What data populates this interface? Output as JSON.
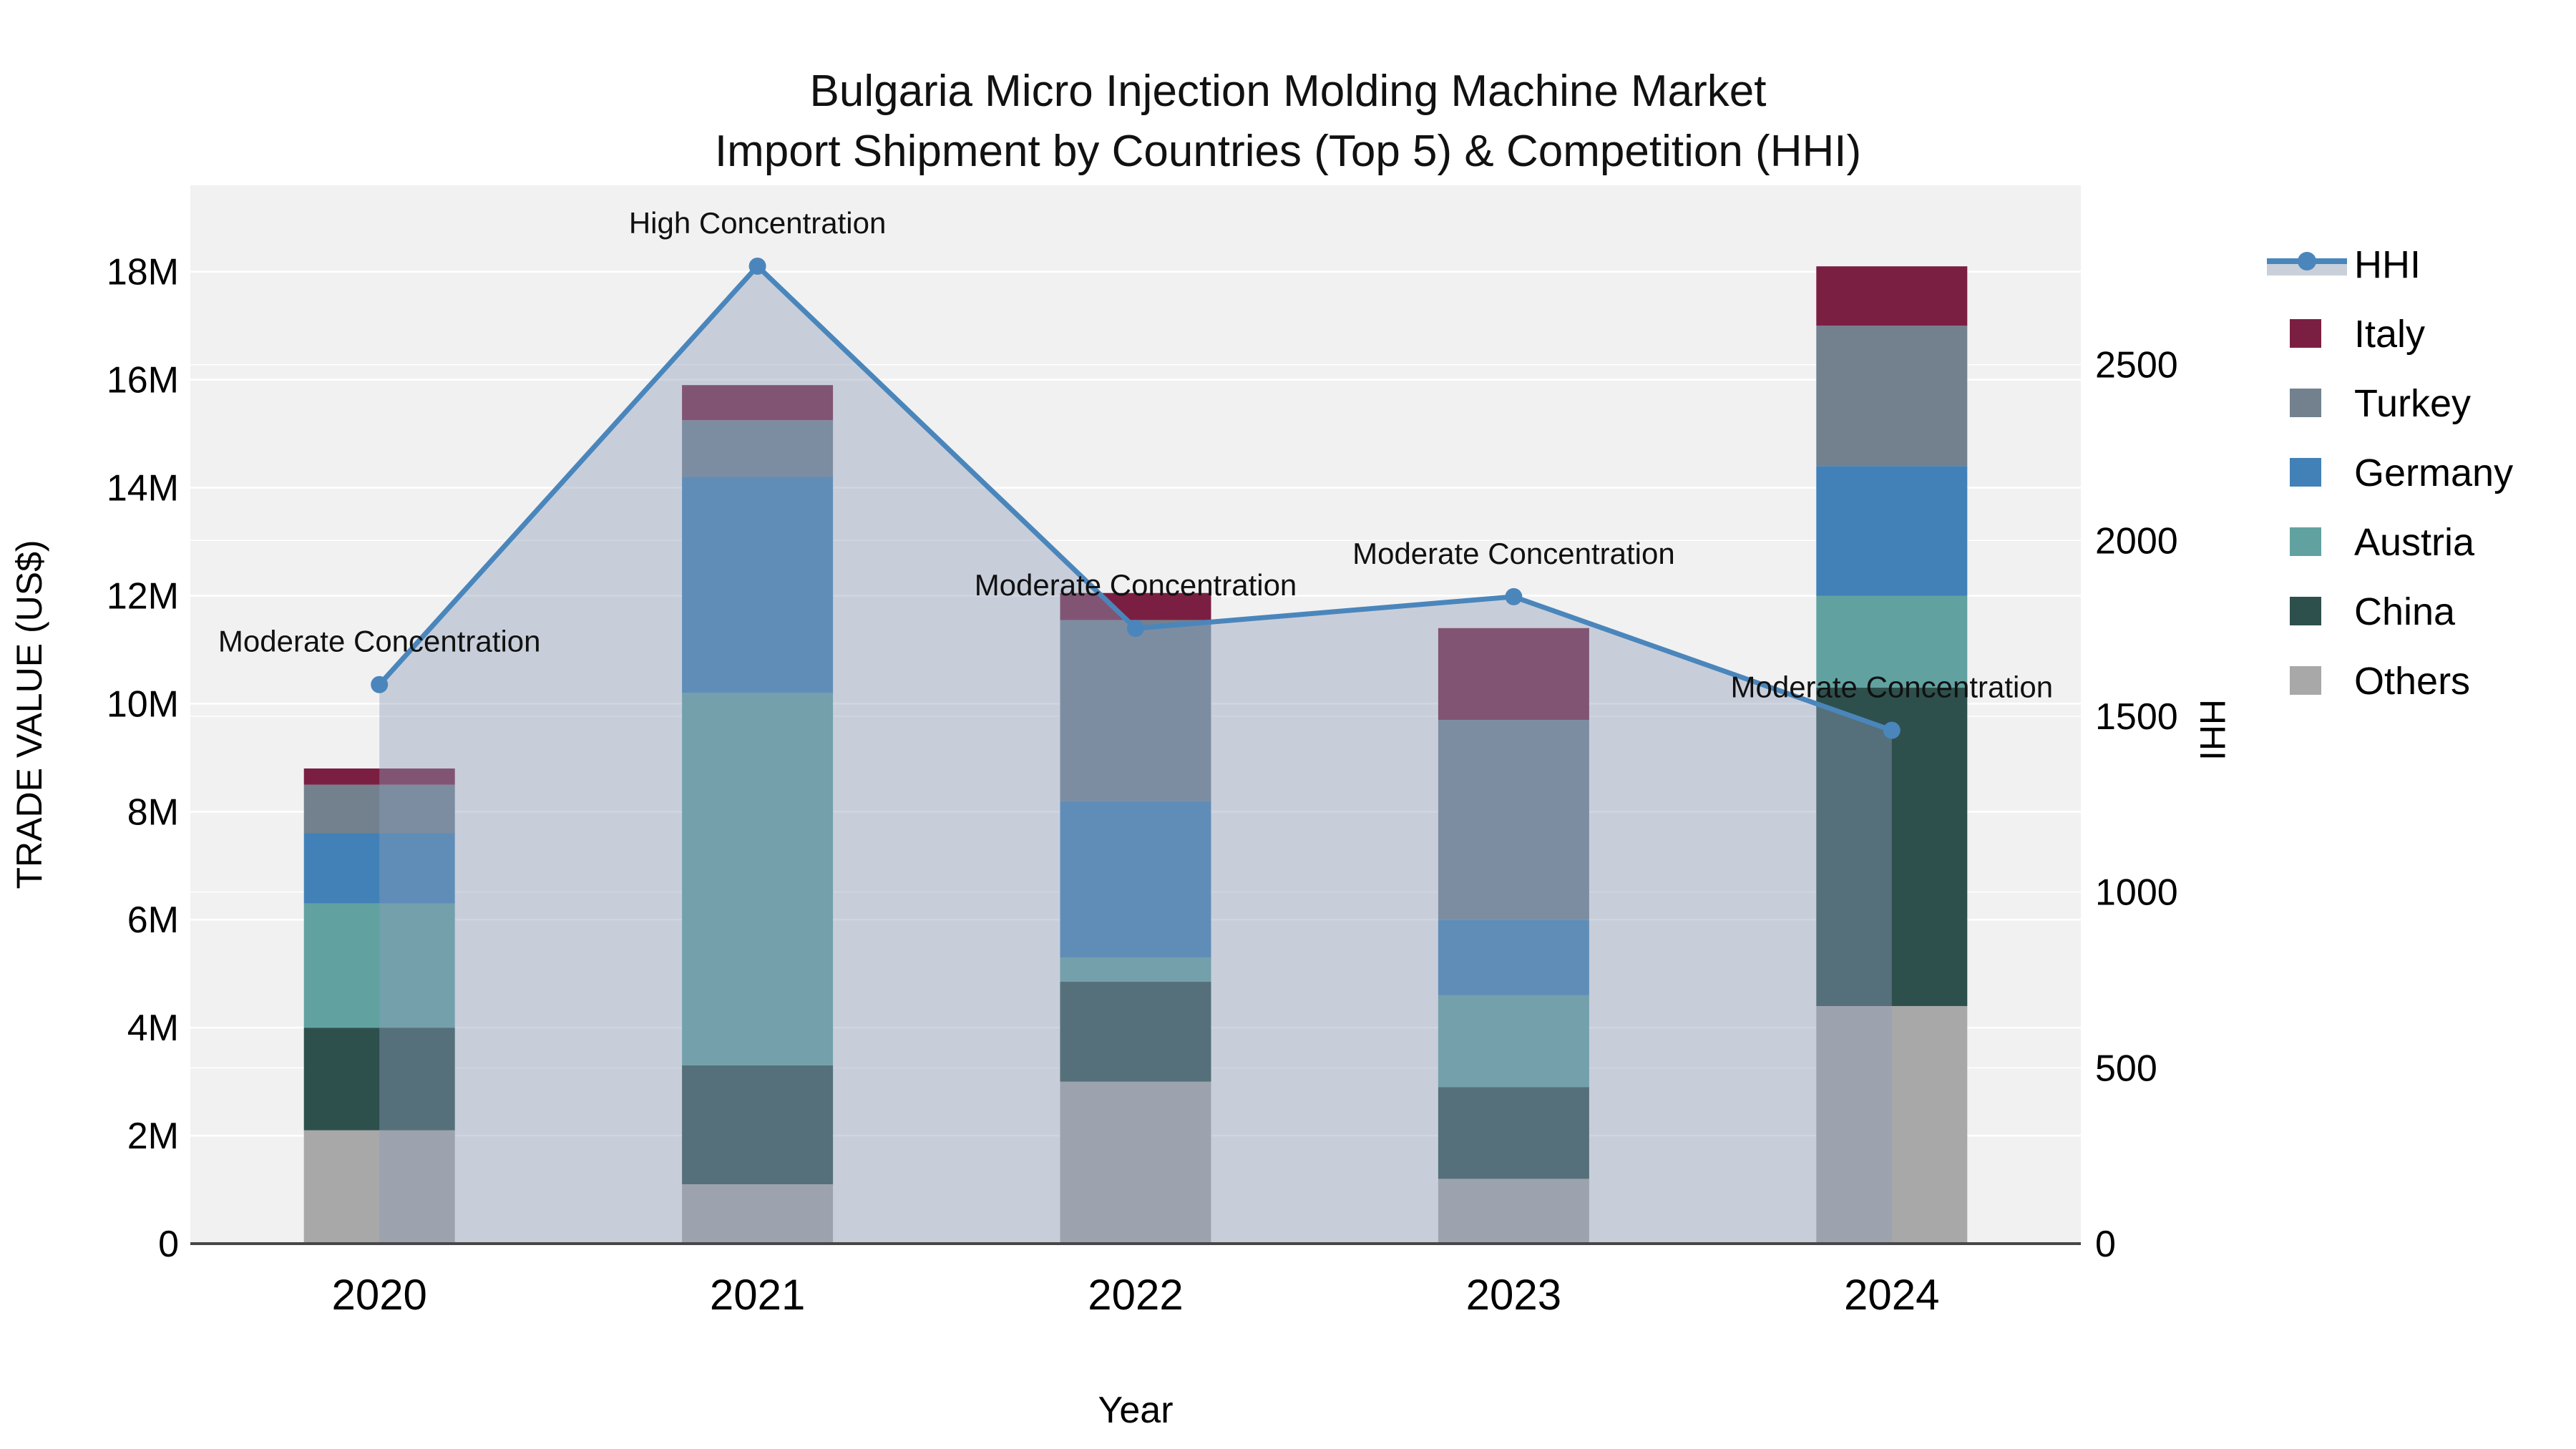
{
  "title": {
    "line1": "Bulgaria Micro Injection Molding Machine Market",
    "line2": "Import Shipment by Countries (Top 5) & Competition (HHI)"
  },
  "chart_data": {
    "type": "combo: stacked bar + line",
    "title": "Bulgaria Micro Injection Molding Machine Market - Import Shipment by Countries (Top 5) & Competition (HHI)",
    "categories": [
      "2020",
      "2021",
      "2022",
      "2023",
      "2024"
    ],
    "xlabel": "Year",
    "ylabel_left": "TRADE VALUE (US$)",
    "ylabel_right": "HHI",
    "bar_value_unit": "million US$",
    "stack_order_bottom_to_top": [
      "Others",
      "China",
      "Austria",
      "Germany",
      "Turkey",
      "Italy"
    ],
    "series": [
      {
        "name": "Others",
        "color": "#a8a8a8",
        "values": [
          2.1,
          1.1,
          3.0,
          1.2,
          4.4
        ]
      },
      {
        "name": "China",
        "color": "#2e504d",
        "values": [
          1.9,
          2.2,
          1.85,
          1.7,
          5.9
        ]
      },
      {
        "name": "Austria",
        "color": "#61a2a1",
        "values": [
          2.3,
          6.9,
          0.45,
          1.7,
          1.7
        ]
      },
      {
        "name": "Germany",
        "color": "#4181b7",
        "values": [
          1.3,
          4.0,
          2.9,
          1.4,
          2.4
        ]
      },
      {
        "name": "Turkey",
        "color": "#73818f",
        "values": [
          0.9,
          1.05,
          3.35,
          3.7,
          2.6
        ]
      },
      {
        "name": "Italy",
        "color": "#7b1f42",
        "values": [
          0.3,
          0.65,
          0.5,
          1.7,
          1.1
        ]
      }
    ],
    "bar_totals_M": [
      8.8,
      15.9,
      12.05,
      11.4,
      18.1
    ],
    "line_series": {
      "name": "HHI",
      "color": "#4a86bb",
      "area_fill": "rgba(140,158,185,0.42)",
      "legend_band_color": "#c9d0da",
      "values": [
        1590,
        2780,
        1750,
        1840,
        1460
      ]
    },
    "annotations": [
      {
        "category": "2020",
        "text": "Moderate Concentration"
      },
      {
        "category": "2021",
        "text": "High Concentration"
      },
      {
        "category": "2022",
        "text": "Moderate Concentration"
      },
      {
        "category": "2023",
        "text": "Moderate Concentration"
      },
      {
        "category": "2024",
        "text": "Moderate Concentration"
      }
    ],
    "yticks_left_labels": [
      "0",
      "2M",
      "4M",
      "6M",
      "8M",
      "10M",
      "12M",
      "14M",
      "16M",
      "18M"
    ],
    "yticks_left_values": [
      0,
      2,
      4,
      6,
      8,
      10,
      12,
      14,
      16,
      18
    ],
    "ylim_left": [
      0,
      19.6
    ],
    "yticks_right": [
      0,
      500,
      1000,
      1500,
      2000,
      2500
    ],
    "ylim_right": [
      0,
      3010
    ],
    "grid": true,
    "plot_bg": "#f1f1f2",
    "grid_color": "#ffffff",
    "axis_line_color": "#474747",
    "legend": {
      "position": "right",
      "items": [
        "HHI",
        "Italy",
        "Turkey",
        "Germany",
        "Austria",
        "China",
        "Others"
      ]
    }
  }
}
